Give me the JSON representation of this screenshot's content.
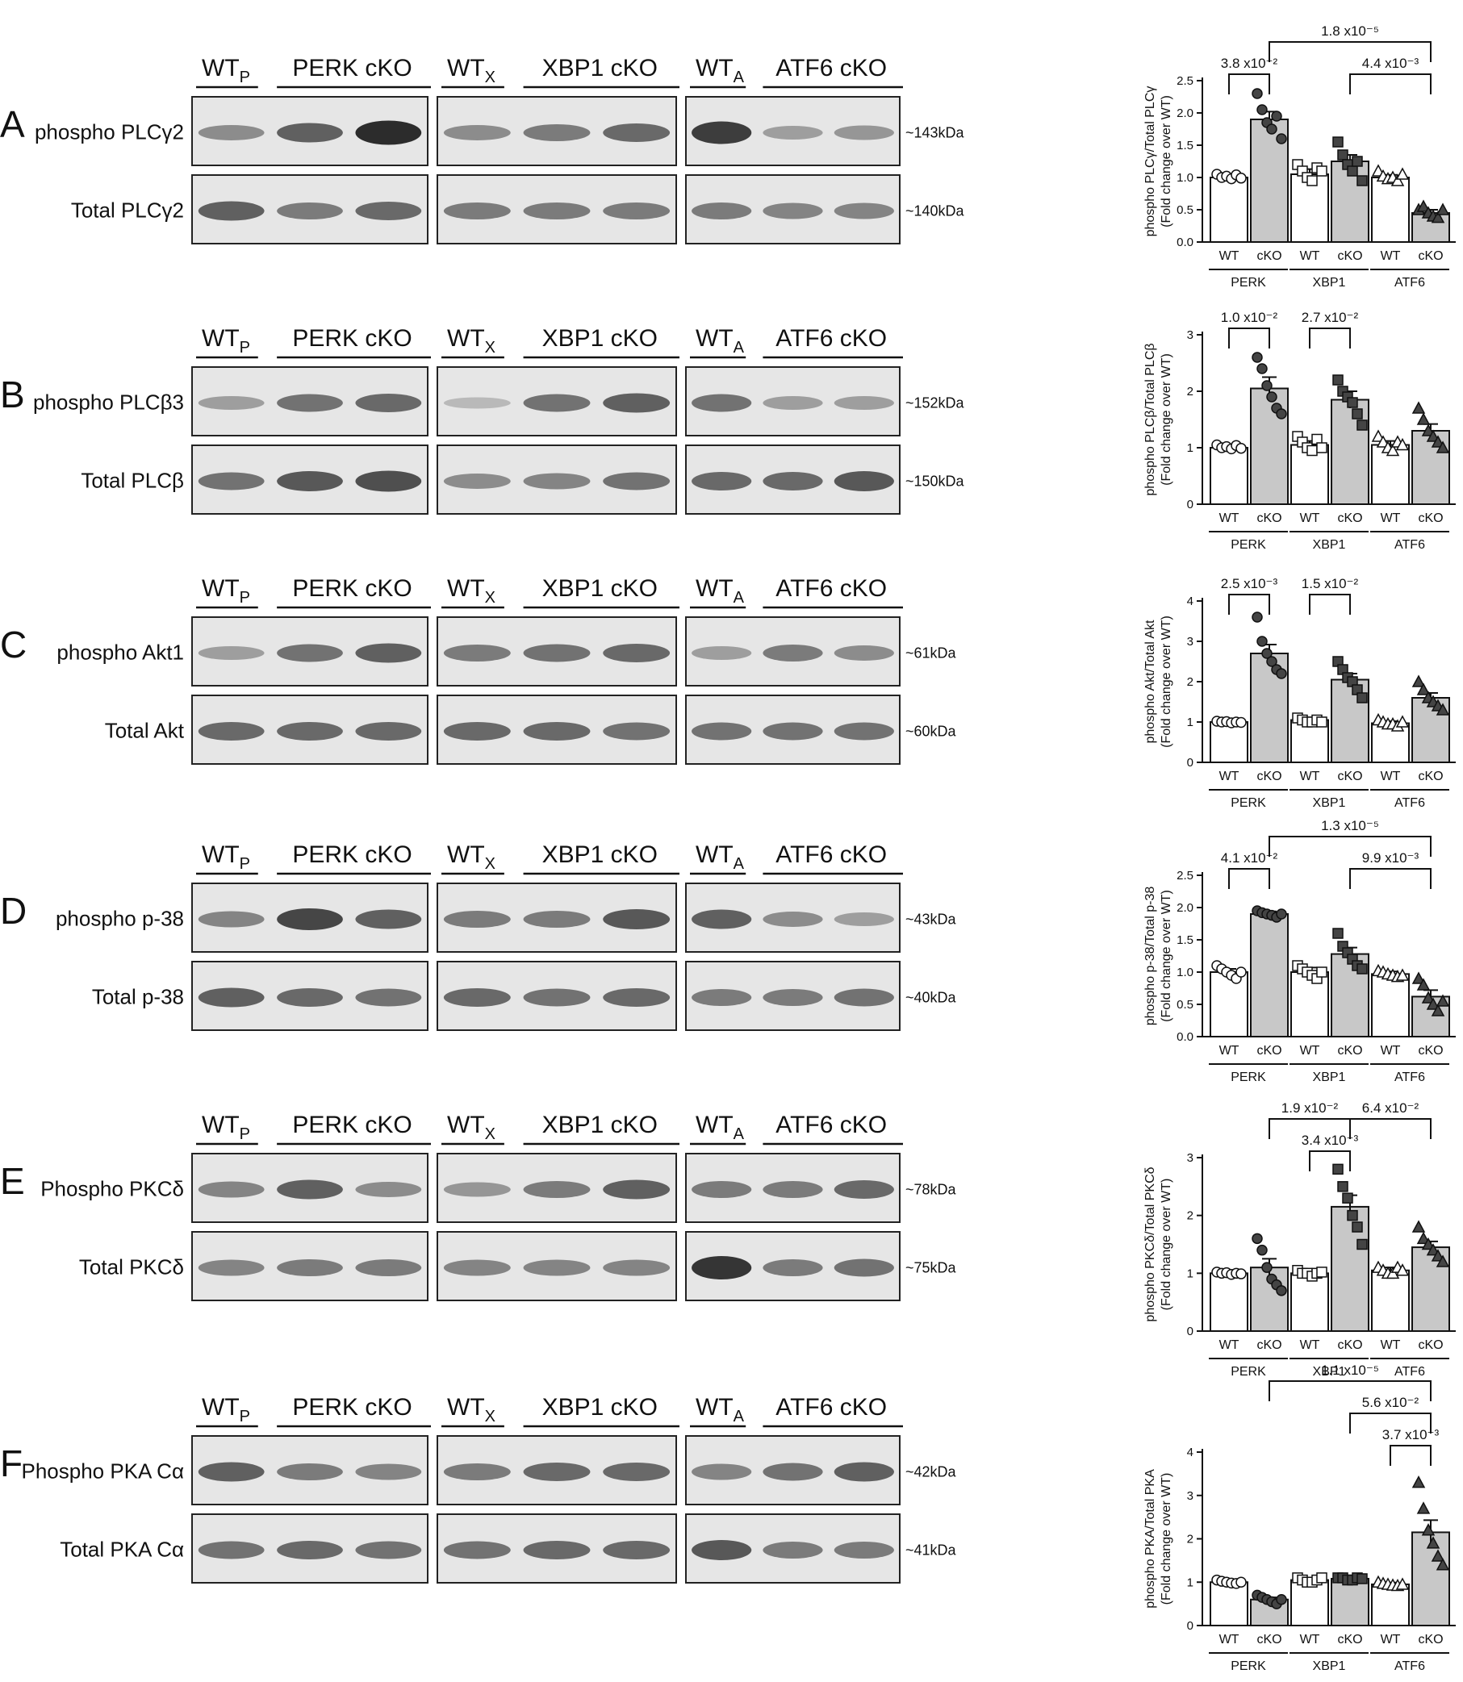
{
  "colors": {
    "wt_bar": "#ffffff",
    "cko_bar": "#c8c8c8",
    "marker_fill_wt": "#ffffff",
    "marker_fill_cko": "#444444",
    "blot_bg": "#e6e6e6"
  },
  "panels": [
    {
      "letter": "A",
      "group_headers": [
        {
          "wt": "WT",
          "wt_sub": "P",
          "ko": "PERK cKO"
        },
        {
          "wt": "WT",
          "wt_sub": "X",
          "ko": "XBP1 cKO"
        },
        {
          "wt": "WT",
          "wt_sub": "A",
          "ko": "ATF6 cKO"
        }
      ],
      "rows": [
        {
          "label": "phospho PLCγ2",
          "kda": "~143kDa",
          "intensity": [
            [
              0.35,
              0.6,
              0.9
            ],
            [
              0.35,
              0.45,
              0.55
            ],
            [
              0.8,
              0.25,
              0.3
            ]
          ]
        },
        {
          "label": "Total PLCγ2",
          "kda": "~140kDa",
          "intensity": [
            [
              0.6,
              0.45,
              0.55
            ],
            [
              0.45,
              0.45,
              0.45
            ],
            [
              0.45,
              0.4,
              0.4
            ]
          ]
        }
      ]
    },
    {
      "letter": "B",
      "group_headers": [
        {
          "wt": "WT",
          "wt_sub": "P",
          "ko": "PERK cKO"
        },
        {
          "wt": "WT",
          "wt_sub": "X",
          "ko": "XBP1 cKO"
        },
        {
          "wt": "WT",
          "wt_sub": "A",
          "ko": "ATF6 cKO"
        }
      ],
      "rows": [
        {
          "label": "phospho PLCβ3",
          "kda": "~152kDa",
          "intensity": [
            [
              0.25,
              0.5,
              0.55
            ],
            [
              0.1,
              0.5,
              0.6
            ],
            [
              0.5,
              0.25,
              0.25
            ]
          ]
        },
        {
          "label": "Total PLCβ",
          "kda": "~150kDa",
          "intensity": [
            [
              0.5,
              0.65,
              0.7
            ],
            [
              0.35,
              0.4,
              0.5
            ],
            [
              0.55,
              0.55,
              0.65
            ]
          ]
        }
      ]
    },
    {
      "letter": "C",
      "group_headers": [
        {
          "wt": "WT",
          "wt_sub": "P",
          "ko": "PERK cKO"
        },
        {
          "wt": "WT",
          "wt_sub": "X",
          "ko": "XBP1 cKO"
        },
        {
          "wt": "WT",
          "wt_sub": "A",
          "ko": "ATF6 cKO"
        }
      ],
      "rows": [
        {
          "label": "phospho Akt1",
          "kda": "~61kDa",
          "intensity": [
            [
              0.25,
              0.5,
              0.6
            ],
            [
              0.45,
              0.5,
              0.55
            ],
            [
              0.25,
              0.45,
              0.35
            ]
          ]
        },
        {
          "label": "Total Akt",
          "kda": "~60kDa",
          "intensity": [
            [
              0.55,
              0.55,
              0.55
            ],
            [
              0.55,
              0.55,
              0.5
            ],
            [
              0.5,
              0.5,
              0.5
            ]
          ]
        }
      ]
    },
    {
      "letter": "D",
      "group_headers": [
        {
          "wt": "WT",
          "wt_sub": "P",
          "ko": "PERK cKO"
        },
        {
          "wt": "WT",
          "wt_sub": "X",
          "ko": "XBP1 cKO"
        },
        {
          "wt": "WT",
          "wt_sub": "A",
          "ko": "ATF6 cKO"
        }
      ],
      "rows": [
        {
          "label": "phospho p-38",
          "kda": "~43kDa",
          "intensity": [
            [
              0.4,
              0.75,
              0.6
            ],
            [
              0.45,
              0.45,
              0.65
            ],
            [
              0.6,
              0.35,
              0.25
            ]
          ]
        },
        {
          "label": "Total p-38",
          "kda": "~40kDa",
          "intensity": [
            [
              0.6,
              0.55,
              0.5
            ],
            [
              0.55,
              0.5,
              0.55
            ],
            [
              0.45,
              0.45,
              0.5
            ]
          ]
        }
      ]
    },
    {
      "letter": "E",
      "group_headers": [
        {
          "wt": "WT",
          "wt_sub": "P",
          "ko": "PERK cKO"
        },
        {
          "wt": "WT",
          "wt_sub": "X",
          "ko": "XBP1 cKO"
        },
        {
          "wt": "WT",
          "wt_sub": "A",
          "ko": "ATF6 cKO"
        }
      ],
      "rows": [
        {
          "label": "Phospho PKCδ",
          "kda": "~78kDa",
          "intensity": [
            [
              0.4,
              0.6,
              0.35
            ],
            [
              0.3,
              0.45,
              0.6
            ],
            [
              0.45,
              0.45,
              0.55
            ]
          ]
        },
        {
          "label": "Total PKCδ",
          "kda": "~75kDa",
          "intensity": [
            [
              0.4,
              0.45,
              0.45
            ],
            [
              0.4,
              0.4,
              0.4
            ],
            [
              0.85,
              0.45,
              0.5
            ]
          ]
        }
      ]
    },
    {
      "letter": "F",
      "group_headers": [
        {
          "wt": "WT",
          "wt_sub": "P",
          "ko": "PERK cKO"
        },
        {
          "wt": "WT",
          "wt_sub": "X",
          "ko": "XBP1 cKO"
        },
        {
          "wt": "WT",
          "wt_sub": "A",
          "ko": "ATF6 cKO"
        }
      ],
      "rows": [
        {
          "label": "Phospho PKA Cα",
          "kda": "~42kDa",
          "intensity": [
            [
              0.6,
              0.45,
              0.4
            ],
            [
              0.45,
              0.55,
              0.55
            ],
            [
              0.4,
              0.5,
              0.6
            ]
          ]
        },
        {
          "label": "Total PKA Cα",
          "kda": "~41kDa",
          "intensity": [
            [
              0.5,
              0.55,
              0.5
            ],
            [
              0.5,
              0.55,
              0.55
            ],
            [
              0.65,
              0.45,
              0.45
            ]
          ]
        }
      ]
    }
  ],
  "chart_data": [
    {
      "type": "bar",
      "ylabel_line1": "phospho PLCγ/Total PLCγ",
      "ylabel_line2": "(Fold change over WT)",
      "yticks": [
        "0.0",
        "0.5",
        "1.0",
        "1.5",
        "2.0",
        "2.5"
      ],
      "ylim": [
        0,
        2.5
      ],
      "categories": [
        "WT",
        "cKO",
        "WT",
        "cKO",
        "WT",
        "cKO"
      ],
      "groups": [
        "PERK",
        "XBP1",
        "ATF6"
      ],
      "values": [
        1.0,
        1.9,
        1.05,
        1.25,
        1.0,
        0.45
      ],
      "errors": [
        0.04,
        0.12,
        0.08,
        0.1,
        0.04,
        0.05
      ],
      "markers": [
        "circle",
        "circle",
        "square",
        "square",
        "triangle",
        "triangle"
      ],
      "points": [
        [
          1.05,
          1.0,
          1.02,
          0.98,
          1.04,
          0.99
        ],
        [
          2.3,
          2.05,
          1.85,
          1.75,
          1.95,
          1.6
        ],
        [
          1.2,
          1.1,
          1.0,
          0.95,
          1.15,
          1.1
        ],
        [
          1.55,
          1.35,
          1.2,
          1.1,
          1.25,
          0.95
        ],
        [
          1.1,
          1.02,
          0.98,
          1.0,
          0.95,
          1.05
        ],
        [
          0.5,
          0.55,
          0.45,
          0.4,
          0.38,
          0.5
        ]
      ],
      "comparisons": [
        {
          "from": 0,
          "to": 1,
          "label": "3.8 x10⁻²",
          "level": 1
        },
        {
          "from": 3,
          "to": 5,
          "label": "4.4 x10⁻³",
          "level": 1
        },
        {
          "from": 1,
          "to": 5,
          "label": "1.8 x10⁻⁵",
          "level": 2
        }
      ]
    },
    {
      "type": "bar",
      "ylabel_line1": "phospho PLCβ/Total PLCβ",
      "ylabel_line2": "(Fold change over WT)",
      "yticks": [
        "0",
        "1",
        "2",
        "3"
      ],
      "ylim": [
        0,
        3
      ],
      "categories": [
        "WT",
        "cKO",
        "WT",
        "cKO",
        "WT",
        "cKO"
      ],
      "groups": [
        "PERK",
        "XBP1",
        "ATF6"
      ],
      "values": [
        1.0,
        2.05,
        1.05,
        1.85,
        1.05,
        1.3
      ],
      "errors": [
        0.03,
        0.2,
        0.07,
        0.15,
        0.07,
        0.12
      ],
      "markers": [
        "circle",
        "circle",
        "square",
        "square",
        "triangle",
        "triangle"
      ],
      "points": [
        [
          1.05,
          1.0,
          1.02,
          0.98,
          1.04,
          0.99
        ],
        [
          2.6,
          2.4,
          2.1,
          1.9,
          1.7,
          1.6
        ],
        [
          1.2,
          1.1,
          1.0,
          0.95,
          1.15,
          1.0
        ],
        [
          2.2,
          2.0,
          1.9,
          1.8,
          1.6,
          1.4
        ],
        [
          1.2,
          1.1,
          1.0,
          0.95,
          1.1,
          1.05
        ],
        [
          1.7,
          1.5,
          1.3,
          1.2,
          1.1,
          1.0
        ]
      ],
      "comparisons": [
        {
          "from": 0,
          "to": 1,
          "label": "1.0 x10⁻²",
          "level": 1
        },
        {
          "from": 2,
          "to": 3,
          "label": "2.7 x10⁻²",
          "level": 1
        }
      ]
    },
    {
      "type": "bar",
      "ylabel_line1": "phospho Akt/Total Akt",
      "ylabel_line2": "(Fold change over WT)",
      "yticks": [
        "0",
        "1",
        "2",
        "3",
        "4"
      ],
      "ylim": [
        0,
        4
      ],
      "categories": [
        "WT",
        "cKO",
        "WT",
        "cKO",
        "WT",
        "cKO"
      ],
      "groups": [
        "PERK",
        "XBP1",
        "ATF6"
      ],
      "values": [
        1.0,
        2.7,
        1.05,
        2.05,
        0.97,
        1.6
      ],
      "errors": [
        0.03,
        0.22,
        0.05,
        0.15,
        0.05,
        0.12
      ],
      "markers": [
        "circle",
        "circle",
        "square",
        "square",
        "triangle",
        "triangle"
      ],
      "points": [
        [
          1.02,
          1.0,
          1.01,
          0.98,
          1.0,
          0.99
        ],
        [
          3.6,
          3.0,
          2.7,
          2.5,
          2.3,
          2.2
        ],
        [
          1.1,
          1.05,
          1.0,
          1.0,
          1.05,
          1.0
        ],
        [
          2.5,
          2.3,
          2.1,
          2.0,
          1.8,
          1.6
        ],
        [
          1.05,
          1.0,
          0.95,
          0.95,
          0.9,
          1.0
        ],
        [
          2.0,
          1.8,
          1.6,
          1.5,
          1.4,
          1.3
        ]
      ],
      "comparisons": [
        {
          "from": 0,
          "to": 1,
          "label": "2.5 x10⁻³",
          "level": 1
        },
        {
          "from": 2,
          "to": 3,
          "label": "1.5 x10⁻²",
          "level": 1
        }
      ]
    },
    {
      "type": "bar",
      "ylabel_line1": "phospho p-38/Total p-38",
      "ylabel_line2": "(Fold change over WT)",
      "yticks": [
        "0.0",
        "0.5",
        "1.0",
        "1.5",
        "2.0",
        "2.5"
      ],
      "ylim": [
        0,
        2.5
      ],
      "categories": [
        "WT",
        "cKO",
        "WT",
        "cKO",
        "WT",
        "cKO"
      ],
      "groups": [
        "PERK",
        "XBP1",
        "ATF6"
      ],
      "values": [
        1.0,
        1.9,
        1.0,
        1.28,
        0.97,
        0.62
      ],
      "errors": [
        0.05,
        0.04,
        0.07,
        0.1,
        0.04,
        0.1
      ],
      "markers": [
        "circle",
        "circle",
        "square",
        "square",
        "triangle",
        "triangle"
      ],
      "points": [
        [
          1.1,
          1.05,
          1.0,
          0.95,
          0.9,
          1.0
        ],
        [
          1.95,
          1.92,
          1.9,
          1.88,
          1.85,
          1.9
        ],
        [
          1.1,
          1.05,
          1.0,
          0.95,
          0.9,
          1.0
        ],
        [
          1.6,
          1.4,
          1.3,
          1.2,
          1.1,
          1.05
        ],
        [
          1.02,
          1.0,
          0.97,
          0.95,
          0.93,
          0.95
        ],
        [
          0.9,
          0.8,
          0.6,
          0.5,
          0.4,
          0.55
        ]
      ],
      "comparisons": [
        {
          "from": 0,
          "to": 1,
          "label": "4.1 x10⁻²",
          "level": 1
        },
        {
          "from": 3,
          "to": 5,
          "label": "9.9 x10⁻³",
          "level": 1
        },
        {
          "from": 1,
          "to": 5,
          "label": "1.3 x10⁻⁵",
          "level": 2
        }
      ]
    },
    {
      "type": "bar",
      "ylabel_line1": "phospho PKCδ/Total PKCδ",
      "ylabel_line2": "(Fold change over WT)",
      "yticks": [
        "0",
        "1",
        "2",
        "3"
      ],
      "ylim": [
        0,
        3
      ],
      "categories": [
        "WT",
        "cKO",
        "WT",
        "cKO",
        "WT",
        "cKO"
      ],
      "groups": [
        "PERK",
        "XBP1",
        "ATF6"
      ],
      "values": [
        1.0,
        1.1,
        1.0,
        2.15,
        1.05,
        1.45
      ],
      "errors": [
        0.03,
        0.15,
        0.05,
        0.2,
        0.05,
        0.1
      ],
      "markers": [
        "circle",
        "circle",
        "square",
        "square",
        "triangle",
        "triangle"
      ],
      "points": [
        [
          1.02,
          1.0,
          1.01,
          0.98,
          1.0,
          0.99
        ],
        [
          1.6,
          1.4,
          1.1,
          0.9,
          0.8,
          0.7
        ],
        [
          1.05,
          1.0,
          1.0,
          0.95,
          1.0,
          1.02
        ],
        [
          2.8,
          2.5,
          2.3,
          2.0,
          1.8,
          1.5
        ],
        [
          1.1,
          1.05,
          1.0,
          1.0,
          1.1,
          1.05
        ],
        [
          1.8,
          1.6,
          1.5,
          1.4,
          1.3,
          1.2
        ]
      ],
      "comparisons": [
        {
          "from": 2,
          "to": 3,
          "label": "3.4 x10⁻³",
          "level": 1
        },
        {
          "from": 1,
          "to": 3,
          "label": "1.9 x10⁻²",
          "level": 2
        },
        {
          "from": 3,
          "to": 5,
          "label": "6.4 x10⁻²",
          "level": 2
        }
      ]
    },
    {
      "type": "bar",
      "ylabel_line1": "phospho PKA/Total PKA",
      "ylabel_line2": "(Fold change over WT)",
      "yticks": [
        "0",
        "1",
        "2",
        "3",
        "4"
      ],
      "ylim": [
        0,
        4
      ],
      "categories": [
        "WT",
        "cKO",
        "WT",
        "cKO",
        "WT",
        "cKO"
      ],
      "groups": [
        "PERK",
        "XBP1",
        "ATF6"
      ],
      "values": [
        1.0,
        0.6,
        1.05,
        1.08,
        0.95,
        2.15
      ],
      "errors": [
        0.04,
        0.05,
        0.04,
        0.04,
        0.04,
        0.28
      ],
      "markers": [
        "circle",
        "circle",
        "square",
        "square",
        "triangle",
        "triangle"
      ],
      "points": [
        [
          1.05,
          1.02,
          1.0,
          0.98,
          0.97,
          1.0
        ],
        [
          0.7,
          0.65,
          0.6,
          0.55,
          0.5,
          0.6
        ],
        [
          1.1,
          1.05,
          1.0,
          1.0,
          1.05,
          1.1
        ],
        [
          1.1,
          1.1,
          1.05,
          1.05,
          1.1,
          1.08
        ],
        [
          1.0,
          0.97,
          0.95,
          0.93,
          0.92,
          0.95
        ],
        [
          3.3,
          2.7,
          2.2,
          1.9,
          1.6,
          1.4
        ]
      ],
      "comparisons": [
        {
          "from": 4,
          "to": 5,
          "label": "3.7 x10⁻³",
          "level": 1
        },
        {
          "from": 3,
          "to": 5,
          "label": "5.6 x10⁻²",
          "level": 2
        },
        {
          "from": 1,
          "to": 5,
          "label": "1.1 x10⁻⁵",
          "level": 3
        }
      ]
    }
  ]
}
